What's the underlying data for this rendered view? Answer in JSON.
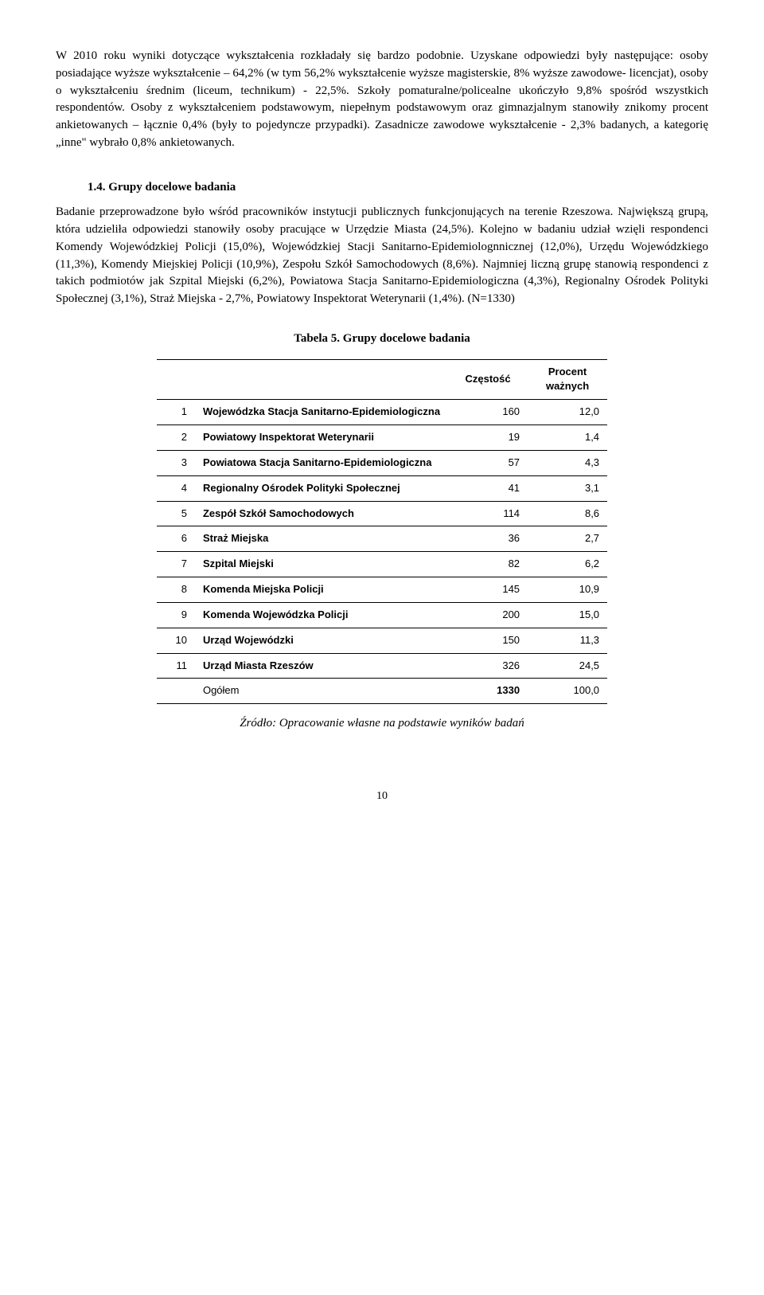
{
  "paras": {
    "p1": "W 2010 roku wyniki dotyczące wykształcenia rozkładały się bardzo podobnie. Uzyskane odpowiedzi były następujące: osoby posiadające wyższe wykształcenie – 64,2% (w tym 56,2% wykształcenie wyższe magisterskie, 8% wyższe zawodowe- licencjat), osoby o wykształceniu średnim (liceum, technikum) - 22,5%. Szkoły pomaturalne/policealne ukończyło 9,8% spośród wszystkich respondentów. Osoby z wykształceniem podstawowym, niepełnym podstawowym oraz gimnazjalnym stanowiły znikomy procent ankietowanych – łącznie 0,4% (były to pojedyncze przypadki). Zasadnicze zawodowe wykształcenie - 2,3% badanych, a kategorię „inne\" wybrało 0,8% ankietowanych.",
    "p2": "Badanie przeprowadzone było wśród pracowników instytucji publicznych funkcjonujących na terenie Rzeszowa. Największą grupą, która udzieliła odpowiedzi stanowiły osoby pracujące w Urzędzie Miasta (24,5%). Kolejno w badaniu udział wzięli respondenci Komendy Wojewódzkiej Policji (15,0%), Wojewódzkiej Stacji Sanitarno-Epidemiolognnicznej (12,0%), Urzędu Wojewódzkiego (11,3%), Komendy Miejskiej Policji (10,9%), Zespołu Szkół Samochodowych (8,6%). Najmniej liczną grupę stanowią respondenci z takich podmiotów jak Szpital Miejski (6,2%), Powiatowa Stacja Sanitarno-Epidemiologiczna (4,3%), Regionalny Ośrodek Polityki Społecznej (3,1%), Straż Miejska - 2,7%, Powiatowy Inspektorat Weterynarii (1,4%). (N=1330)"
  },
  "heading": "1.4. Grupy docelowe badania",
  "table": {
    "caption": "Tabela 5. Grupy docelowe badania",
    "header_freq": "Częstość",
    "header_pct": "Procent ważnych",
    "rows": [
      {
        "idx": "1",
        "label": "Wojewódzka Stacja Sanitarno-Epidemiologiczna",
        "freq": "160",
        "pct": "12,0"
      },
      {
        "idx": "2",
        "label": "Powiatowy Inspektorat Weterynarii",
        "freq": "19",
        "pct": "1,4"
      },
      {
        "idx": "3",
        "label": "Powiatowa Stacja Sanitarno-Epidemiologiczna",
        "freq": "57",
        "pct": "4,3"
      },
      {
        "idx": "4",
        "label": "Regionalny Ośrodek Polityki Społecznej",
        "freq": "41",
        "pct": "3,1"
      },
      {
        "idx": "5",
        "label": "Zespół Szkół Samochodowych",
        "freq": "114",
        "pct": "8,6"
      },
      {
        "idx": "6",
        "label": "Straż Miejska",
        "freq": "36",
        "pct": "2,7"
      },
      {
        "idx": "7",
        "label": "Szpital Miejski",
        "freq": "82",
        "pct": "6,2"
      },
      {
        "idx": "8",
        "label": "Komenda Miejska Policji",
        "freq": "145",
        "pct": "10,9"
      },
      {
        "idx": "9",
        "label": "Komenda Wojewódzka Policji",
        "freq": "200",
        "pct": "15,0"
      },
      {
        "idx": "10",
        "label": "Urząd Wojewódzki",
        "freq": "150",
        "pct": "11,3"
      },
      {
        "idx": "11",
        "label": "Urząd Miasta Rzeszów",
        "freq": "326",
        "pct": "24,5"
      }
    ],
    "total_label": "Ogółem",
    "total_freq": "1330",
    "total_pct": "100,0"
  },
  "source": "Źródło: Opracowanie własne na podstawie wyników badań",
  "pagenum": "10",
  "style": {
    "body_font": "Times New Roman",
    "table_font": "Arial",
    "body_size_pt": 12,
    "table_size_pt": 10,
    "text_color": "#000000",
    "background_color": "#ffffff",
    "rule_color": "#000000"
  }
}
